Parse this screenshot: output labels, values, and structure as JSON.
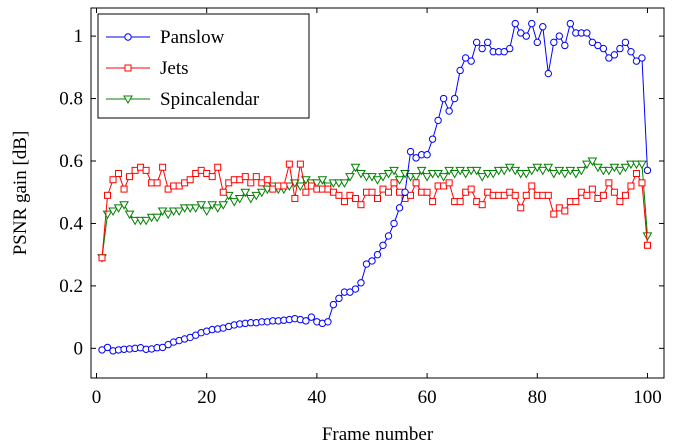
{
  "chart_data": {
    "type": "line",
    "xlabel": "Frame number",
    "ylabel": "PSNR gain [dB]",
    "xlim": [
      -1,
      103
    ],
    "ylim": [
      -0.095,
      1.09
    ],
    "xticks": [
      0,
      20,
      40,
      60,
      80,
      100
    ],
    "yticks": [
      0,
      0.2,
      0.4,
      0.6,
      0.8,
      1
    ],
    "ytick_labels": [
      "0",
      "0.2",
      "0.4",
      "0.6",
      "0.8",
      "1"
    ],
    "legend_position": "top-left",
    "grid": false,
    "x": [
      1,
      2,
      3,
      4,
      5,
      6,
      7,
      8,
      9,
      10,
      11,
      12,
      13,
      14,
      15,
      16,
      17,
      18,
      19,
      20,
      21,
      22,
      23,
      24,
      25,
      26,
      27,
      28,
      29,
      30,
      31,
      32,
      33,
      34,
      35,
      36,
      37,
      38,
      39,
      40,
      41,
      42,
      43,
      44,
      45,
      46,
      47,
      48,
      49,
      50,
      51,
      52,
      53,
      54,
      55,
      56,
      57,
      58,
      59,
      60,
      61,
      62,
      63,
      64,
      65,
      66,
      67,
      68,
      69,
      70,
      71,
      72,
      73,
      74,
      75,
      76,
      77,
      78,
      79,
      80,
      81,
      82,
      83,
      84,
      85,
      86,
      87,
      88,
      89,
      90,
      91,
      92,
      93,
      94,
      95,
      96,
      97,
      98,
      99,
      100
    ],
    "series": [
      {
        "name": "Panslow",
        "color": "#0000ff",
        "marker": "circle",
        "values": [
          -0.005,
          0.003,
          -0.008,
          -0.005,
          -0.003,
          -0.002,
          0.0,
          0.002,
          -0.003,
          -0.002,
          0.002,
          0.003,
          0.012,
          0.02,
          0.025,
          0.03,
          0.035,
          0.042,
          0.05,
          0.055,
          0.06,
          0.062,
          0.065,
          0.07,
          0.075,
          0.078,
          0.08,
          0.082,
          0.082,
          0.085,
          0.085,
          0.088,
          0.088,
          0.09,
          0.092,
          0.095,
          0.092,
          0.088,
          0.1,
          0.085,
          0.08,
          0.085,
          0.14,
          0.16,
          0.18,
          0.18,
          0.19,
          0.21,
          0.27,
          0.28,
          0.3,
          0.33,
          0.36,
          0.4,
          0.45,
          0.5,
          0.63,
          0.61,
          0.62,
          0.62,
          0.67,
          0.73,
          0.8,
          0.76,
          0.8,
          0.89,
          0.93,
          0.92,
          0.98,
          0.96,
          0.98,
          0.95,
          0.95,
          0.95,
          0.96,
          1.04,
          1.01,
          1.0,
          1.04,
          0.98,
          1.03,
          0.88,
          0.98,
          1.0,
          0.97,
          1.04,
          1.01,
          1.01,
          1.01,
          0.98,
          0.97,
          0.96,
          0.93,
          0.94,
          0.96,
          0.98,
          0.95,
          0.92,
          0.93,
          0.57
        ]
      },
      {
        "name": "Jets",
        "color": "#ff0000",
        "marker": "square",
        "values": [
          0.29,
          0.49,
          0.54,
          0.56,
          0.51,
          0.55,
          0.57,
          0.58,
          0.57,
          0.53,
          0.53,
          0.58,
          0.51,
          0.52,
          0.52,
          0.53,
          0.54,
          0.56,
          0.57,
          0.56,
          0.55,
          0.58,
          0.5,
          0.53,
          0.54,
          0.54,
          0.55,
          0.53,
          0.55,
          0.53,
          0.54,
          0.51,
          0.52,
          0.52,
          0.59,
          0.48,
          0.59,
          0.5,
          0.52,
          0.51,
          0.51,
          0.51,
          0.5,
          0.49,
          0.47,
          0.49,
          0.48,
          0.46,
          0.5,
          0.5,
          0.48,
          0.51,
          0.5,
          0.53,
          0.5,
          0.48,
          0.49,
          0.53,
          0.5,
          0.5,
          0.47,
          0.52,
          0.52,
          0.53,
          0.47,
          0.47,
          0.5,
          0.51,
          0.47,
          0.46,
          0.5,
          0.49,
          0.49,
          0.49,
          0.5,
          0.49,
          0.45,
          0.49,
          0.52,
          0.49,
          0.49,
          0.49,
          0.43,
          0.45,
          0.44,
          0.47,
          0.47,
          0.5,
          0.49,
          0.51,
          0.48,
          0.49,
          0.53,
          0.5,
          0.47,
          0.49,
          0.52,
          0.56,
          0.53,
          0.33
        ]
      },
      {
        "name": "Spincalendar",
        "color": "#008000",
        "marker": "triangle-down",
        "values": [
          0.29,
          0.43,
          0.44,
          0.45,
          0.46,
          0.43,
          0.41,
          0.41,
          0.41,
          0.42,
          0.42,
          0.44,
          0.43,
          0.44,
          0.44,
          0.45,
          0.45,
          0.45,
          0.46,
          0.44,
          0.46,
          0.45,
          0.46,
          0.49,
          0.47,
          0.48,
          0.5,
          0.48,
          0.49,
          0.5,
          0.51,
          0.52,
          0.51,
          0.51,
          0.52,
          0.53,
          0.52,
          0.54,
          0.53,
          0.53,
          0.54,
          0.52,
          0.53,
          0.53,
          0.53,
          0.55,
          0.58,
          0.56,
          0.55,
          0.55,
          0.54,
          0.55,
          0.56,
          0.57,
          0.54,
          0.56,
          0.55,
          0.55,
          0.57,
          0.55,
          0.56,
          0.56,
          0.55,
          0.57,
          0.56,
          0.57,
          0.56,
          0.57,
          0.57,
          0.55,
          0.56,
          0.56,
          0.57,
          0.57,
          0.58,
          0.57,
          0.56,
          0.56,
          0.57,
          0.58,
          0.57,
          0.58,
          0.56,
          0.57,
          0.56,
          0.57,
          0.56,
          0.57,
          0.59,
          0.6,
          0.58,
          0.57,
          0.57,
          0.58,
          0.57,
          0.58,
          0.59,
          0.59,
          0.59,
          0.36
        ]
      }
    ]
  }
}
